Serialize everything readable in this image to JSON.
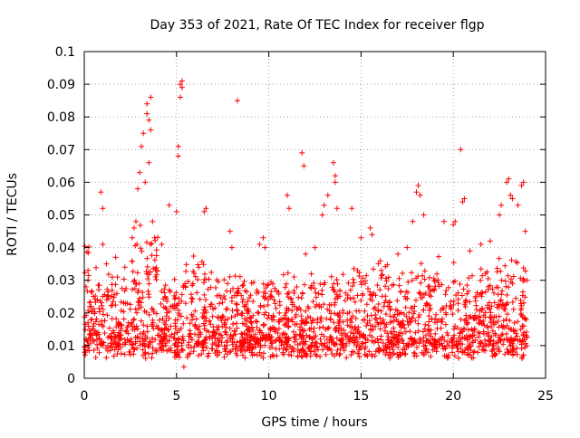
{
  "chart_data": {
    "type": "scatter",
    "title": "Day 353 of 2021, Rate Of TEC Index for receiver flgp",
    "xlabel": "GPS time / hours",
    "ylabel": "ROTI / TECUs",
    "xlim": [
      0,
      25
    ],
    "ylim": [
      0,
      0.1
    ],
    "xticks": [
      0,
      5,
      10,
      15,
      20,
      25
    ],
    "yticks": [
      0,
      0.01,
      0.02,
      0.03,
      0.04,
      0.05,
      0.06,
      0.07,
      0.08,
      0.09,
      0.1
    ],
    "xtick_labels": [
      "0",
      "5",
      "10",
      "15",
      "20",
      "25"
    ],
    "ytick_labels": [
      "0",
      "0.01",
      "0.02",
      "0.03",
      "0.04",
      "0.05",
      "0.06",
      "0.07",
      "0.08",
      "0.09",
      "0.1"
    ],
    "grid": true,
    "marker": "+",
    "color": "#ff0000",
    "data_range_x": [
      0,
      24
    ],
    "series": [
      {
        "name": "ROTI",
        "points": [
          [
            0.1,
            0.028
          ],
          [
            0.2,
            0.03
          ],
          [
            0.3,
            0.022
          ],
          [
            0.9,
            0.057
          ],
          [
            1.0,
            0.052
          ],
          [
            1.0,
            0.041
          ],
          [
            1.2,
            0.035
          ],
          [
            1.7,
            0.037
          ],
          [
            1.8,
            0.031
          ],
          [
            2.2,
            0.034
          ],
          [
            2.6,
            0.043
          ],
          [
            2.7,
            0.046
          ],
          [
            2.8,
            0.048
          ],
          [
            2.9,
            0.058
          ],
          [
            3.0,
            0.063
          ],
          [
            3.1,
            0.071
          ],
          [
            3.2,
            0.075
          ],
          [
            3.3,
            0.06
          ],
          [
            3.4,
            0.081
          ],
          [
            3.4,
            0.084
          ],
          [
            3.5,
            0.079
          ],
          [
            3.5,
            0.066
          ],
          [
            3.6,
            0.086
          ],
          [
            3.6,
            0.076
          ],
          [
            3.7,
            0.048
          ],
          [
            4.2,
            0.041
          ],
          [
            4.6,
            0.053
          ],
          [
            5.0,
            0.051
          ],
          [
            5.1,
            0.068
          ],
          [
            5.1,
            0.071
          ],
          [
            5.2,
            0.086
          ],
          [
            5.2,
            0.09
          ],
          [
            5.3,
            0.091
          ],
          [
            5.3,
            0.089
          ],
          [
            5.4,
            0.0035
          ],
          [
            6.5,
            0.051
          ],
          [
            6.6,
            0.052
          ],
          [
            7.9,
            0.045
          ],
          [
            8.0,
            0.04
          ],
          [
            8.3,
            0.085
          ],
          [
            9.5,
            0.041
          ],
          [
            9.7,
            0.043
          ],
          [
            9.8,
            0.04
          ],
          [
            11.0,
            0.056
          ],
          [
            11.1,
            0.052
          ],
          [
            11.8,
            0.069
          ],
          [
            11.9,
            0.065
          ],
          [
            12.0,
            0.038
          ],
          [
            12.5,
            0.04
          ],
          [
            12.9,
            0.05
          ],
          [
            13.0,
            0.053
          ],
          [
            13.2,
            0.056
          ],
          [
            13.5,
            0.066
          ],
          [
            13.6,
            0.06
          ],
          [
            13.6,
            0.062
          ],
          [
            13.7,
            0.052
          ],
          [
            14.5,
            0.052
          ],
          [
            15.0,
            0.043
          ],
          [
            15.5,
            0.046
          ],
          [
            15.6,
            0.044
          ],
          [
            17.0,
            0.038
          ],
          [
            17.5,
            0.04
          ],
          [
            17.8,
            0.048
          ],
          [
            18.0,
            0.057
          ],
          [
            18.1,
            0.059
          ],
          [
            18.2,
            0.056
          ],
          [
            18.4,
            0.05
          ],
          [
            19.5,
            0.048
          ],
          [
            20.0,
            0.047
          ],
          [
            20.1,
            0.048
          ],
          [
            20.4,
            0.07
          ],
          [
            20.5,
            0.054
          ],
          [
            20.6,
            0.055
          ],
          [
            20.9,
            0.039
          ],
          [
            21.5,
            0.041
          ],
          [
            22.0,
            0.042
          ],
          [
            22.5,
            0.05
          ],
          [
            22.6,
            0.053
          ],
          [
            22.9,
            0.06
          ],
          [
            23.0,
            0.061
          ],
          [
            23.1,
            0.056
          ],
          [
            23.2,
            0.055
          ],
          [
            23.5,
            0.053
          ],
          [
            23.7,
            0.059
          ],
          [
            23.8,
            0.06
          ],
          [
            23.9,
            0.045
          ],
          [
            24.0,
            0.03
          ]
        ]
      }
    ]
  }
}
